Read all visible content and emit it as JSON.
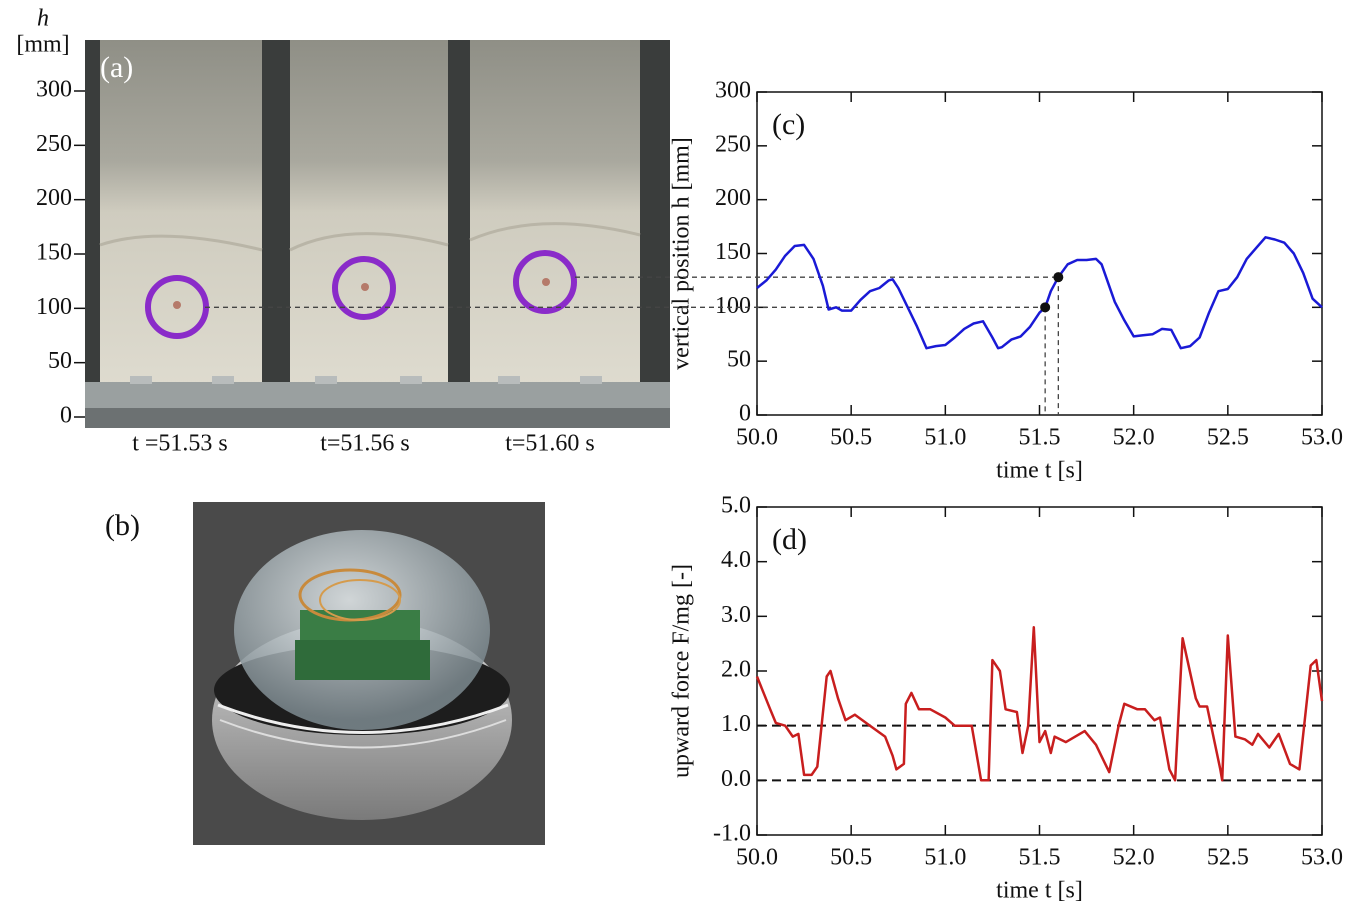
{
  "panel_a": {
    "label": "(a)",
    "axis_symbol": "h",
    "axis_unit": "[mm]",
    "ylim": [
      0,
      300
    ],
    "yticks": [
      0,
      50,
      100,
      150,
      200,
      250,
      300
    ],
    "frames": [
      "t =51.53 s",
      "t=51.56 s",
      "t=51.60 s"
    ]
  },
  "panel_b": {
    "label": "(b)"
  },
  "chart_data": [
    {
      "type": "line",
      "annotation": "(c)",
      "xlabel": "time  t [s]",
      "ylabel": "vertical position  h [mm]",
      "color": "#1a1ad6",
      "xlim": [
        50,
        53
      ],
      "ylim": [
        0,
        300
      ],
      "xticks": [
        {
          "value": 50,
          "label": "50.0"
        },
        {
          "value": 50.5,
          "label": "50.5"
        },
        {
          "value": 51,
          "label": "51.0"
        },
        {
          "value": 51.5,
          "label": "51.5"
        },
        {
          "value": 52,
          "label": "52.0"
        },
        {
          "value": 52.5,
          "label": "52.5"
        },
        {
          "value": 53,
          "label": "53.0"
        }
      ],
      "yticks": [
        0,
        50,
        100,
        150,
        200,
        250,
        300
      ],
      "x": [
        50.0,
        50.05,
        50.1,
        50.15,
        50.2,
        50.25,
        50.3,
        50.35,
        50.38,
        50.42,
        50.45,
        50.5,
        50.55,
        50.6,
        50.65,
        50.7,
        50.72,
        50.75,
        50.8,
        50.85,
        50.9,
        50.95,
        51.0,
        51.05,
        51.1,
        51.15,
        51.2,
        51.25,
        51.28,
        51.3,
        51.35,
        51.4,
        51.45,
        51.5,
        51.53,
        51.56,
        51.6,
        51.65,
        51.7,
        51.75,
        51.8,
        51.83,
        51.9,
        51.95,
        52.0,
        52.05,
        52.1,
        52.15,
        52.2,
        52.25,
        52.3,
        52.35,
        52.4,
        52.45,
        52.5,
        52.55,
        52.6,
        52.65,
        52.7,
        52.75,
        52.8,
        52.85,
        52.9,
        52.95,
        53.0
      ],
      "values": [
        118,
        125,
        135,
        148,
        157,
        158,
        145,
        120,
        98,
        100,
        97,
        97,
        107,
        115,
        118,
        125,
        126,
        118,
        100,
        82,
        62,
        64,
        65,
        72,
        80,
        85,
        87,
        72,
        62,
        63,
        70,
        73,
        82,
        95,
        100,
        115,
        128,
        140,
        144,
        144,
        145,
        140,
        105,
        88,
        73,
        74,
        75,
        80,
        79,
        62,
        64,
        72,
        95,
        115,
        117,
        128,
        145,
        155,
        165,
        163,
        160,
        150,
        132,
        108,
        100
      ],
      "markers": {
        "x": [
          51.53,
          51.6
        ],
        "y": [
          100,
          128
        ]
      }
    },
    {
      "type": "line",
      "annotation": "(d)",
      "xlabel": "time  t [s]",
      "ylabel": "upward force  F/mg [-]",
      "color": "#c81e1e",
      "xlim": [
        50,
        53
      ],
      "ylim": [
        -1,
        5
      ],
      "xticks": [
        {
          "value": 50,
          "label": "50.0"
        },
        {
          "value": 50.5,
          "label": "50.5"
        },
        {
          "value": 51,
          "label": "51.0"
        },
        {
          "value": 51.5,
          "label": "51.5"
        },
        {
          "value": 52,
          "label": "52.0"
        },
        {
          "value": 52.5,
          "label": "52.5"
        },
        {
          "value": 53,
          "label": "53.0"
        }
      ],
      "yticks": [
        {
          "value": -1,
          "label": "-1.0"
        },
        {
          "value": 0,
          "label": "0.0"
        },
        {
          "value": 1,
          "label": "1.0"
        },
        {
          "value": 2,
          "label": "2.0"
        },
        {
          "value": 3,
          "label": "3.0"
        },
        {
          "value": 4,
          "label": "4.0"
        },
        {
          "value": 5,
          "label": "5.0"
        }
      ],
      "x": [
        50.0,
        50.07,
        50.1,
        50.15,
        50.19,
        50.22,
        50.25,
        50.29,
        50.32,
        50.37,
        50.39,
        50.43,
        50.47,
        50.52,
        50.6,
        50.68,
        50.72,
        50.74,
        50.78,
        50.79,
        50.82,
        50.86,
        50.92,
        51.0,
        51.05,
        51.14,
        51.19,
        51.23,
        51.25,
        51.29,
        51.32,
        51.38,
        51.41,
        51.44,
        51.47,
        51.5,
        51.53,
        51.56,
        51.58,
        51.64,
        51.74,
        51.8,
        51.87,
        51.92,
        51.95,
        52.02,
        52.06,
        52.11,
        52.14,
        52.19,
        52.22,
        52.26,
        52.33,
        52.35,
        52.39,
        52.46,
        52.47,
        52.5,
        52.54,
        52.59,
        52.63,
        52.66,
        52.72,
        52.77,
        52.83,
        52.88,
        52.94,
        52.97,
        53.0
      ],
      "values": [
        1.9,
        1.3,
        1.05,
        1.0,
        0.8,
        0.85,
        0.1,
        0.1,
        0.25,
        1.9,
        2.0,
        1.5,
        1.1,
        1.2,
        1.0,
        0.8,
        0.45,
        0.2,
        0.3,
        1.4,
        1.6,
        1.3,
        1.3,
        1.15,
        1.0,
        1.0,
        0.0,
        0.0,
        2.2,
        2.0,
        1.3,
        1.25,
        0.5,
        1.0,
        2.8,
        0.7,
        0.9,
        0.5,
        0.8,
        0.7,
        0.9,
        0.65,
        0.15,
        1.0,
        1.4,
        1.3,
        1.3,
        1.1,
        1.15,
        0.2,
        0.0,
        2.6,
        1.5,
        1.35,
        1.35,
        0.2,
        0.0,
        2.65,
        0.8,
        0.75,
        0.65,
        0.85,
        0.6,
        0.85,
        0.3,
        0.2,
        2.1,
        2.2,
        1.45
      ],
      "reference_lines": [
        0,
        1
      ]
    }
  ]
}
